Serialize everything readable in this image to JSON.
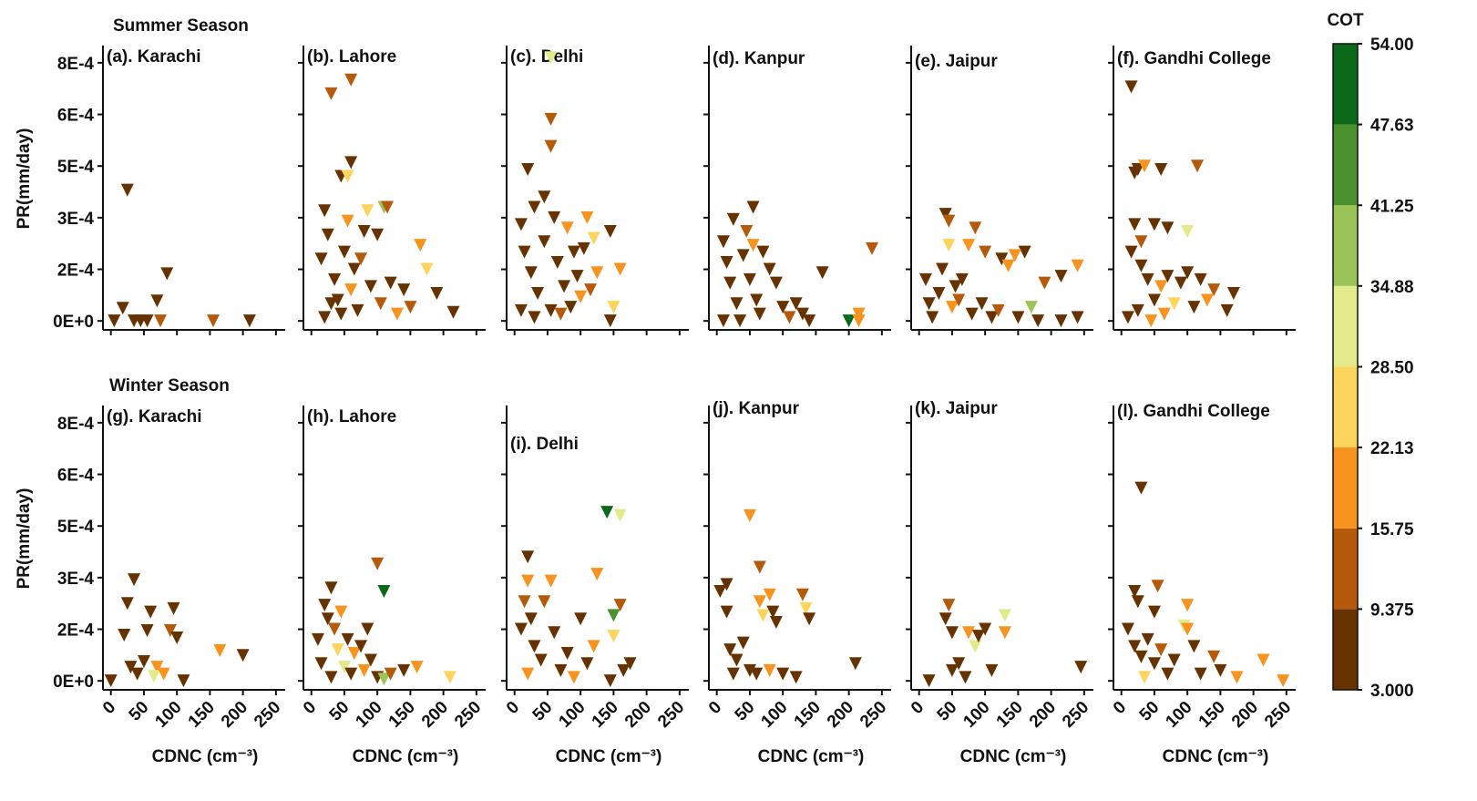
{
  "chart_data": [
    {
      "type": "scatter",
      "season": "Summer Season",
      "title": "(a). Karachi",
      "ylabel": "PR(mm/day)",
      "x": [
        5,
        18,
        25,
        35,
        45,
        55,
        70,
        75,
        85,
        155,
        210
      ],
      "values": [
        0,
        3.7e-05,
        0.00038,
        0,
        0,
        0,
        5.8e-05,
        0,
        0.000137,
        0,
        0
      ],
      "cot": [
        5,
        5,
        5,
        5,
        5,
        5,
        5,
        12,
        5,
        12,
        5
      ],
      "xlim": [
        -12,
        264
      ],
      "ylim": [
        -2.6e-05,
        0.0008
      ],
      "xticks": [
        0,
        50,
        100,
        150,
        200,
        250
      ],
      "yticks": [
        {
          "value": 0,
          "label": "0E+0"
        },
        {
          "value": 0.00015,
          "label": "2E-4"
        },
        {
          "value": 0.0003,
          "label": "3E-4"
        },
        {
          "value": 0.00045,
          "label": "5E-4"
        },
        {
          "value": 0.0006,
          "label": "6E-4"
        },
        {
          "value": 0.00075,
          "label": "8E-4"
        }
      ]
    },
    {
      "type": "scatter",
      "title": "(b). Lahore",
      "x": [
        30,
        60,
        45,
        60,
        55,
        110,
        115,
        165,
        175,
        190,
        215,
        85,
        20,
        25,
        15,
        35,
        40,
        50,
        65,
        70,
        80,
        90,
        100,
        105,
        120,
        130,
        140,
        150,
        20,
        30,
        45,
        60,
        75,
        55
      ],
      "values": [
        0.00066,
        0.0007,
        0.00042,
        0.00046,
        0.00042,
        0.00033,
        0.00033,
        0.00022,
        0.00015,
        8e-05,
        2.5e-05,
        0.00032,
        0.00032,
        0.00025,
        0.00018,
        0.00012,
        6e-05,
        0.0002,
        0.00015,
        3e-05,
        0.00026,
        0.0001,
        0.00025,
        5e-05,
        0.00011,
        2e-05,
        9e-05,
        4e-05,
        1e-05,
        5e-05,
        2e-05,
        9e-05,
        0.00018,
        0.00029
      ],
      "cot": [
        12,
        12,
        5,
        5,
        25,
        37,
        12,
        18,
        28,
        5,
        5,
        25,
        5,
        5,
        5,
        5,
        5,
        5,
        5,
        5,
        5,
        5,
        5,
        12,
        5,
        18,
        5,
        12,
        5,
        5,
        5,
        18,
        12,
        18
      ],
      "xlim": [
        -12,
        264
      ],
      "ylim": [
        -2.6e-05,
        0.0008
      ],
      "xticks": [
        0,
        50,
        100,
        150,
        200,
        250
      ],
      "yticks": [
        0,
        0.00015,
        0.0003,
        0.00045,
        0.0006,
        0.00075
      ]
    },
    {
      "type": "scatter",
      "title": "(c). Delhi",
      "x": [
        55,
        55,
        55,
        20,
        30,
        45,
        60,
        80,
        110,
        120,
        145,
        160,
        150,
        145,
        10,
        15,
        25,
        35,
        45,
        55,
        65,
        75,
        85,
        95,
        105,
        115,
        125,
        10,
        30,
        70,
        90,
        100
      ],
      "values": [
        0.000765,
        0.000586,
        0.000507,
        0.00044,
        0.00033,
        0.00036,
        0.0003,
        0.00027,
        0.0003,
        0.00024,
        0.00026,
        0.00015,
        4e-05,
        0,
        0.00028,
        0.0002,
        0.00014,
        8e-05,
        0.00023,
        3e-05,
        0.00017,
        0.0001,
        4e-05,
        0.00013,
        0.00021,
        9e-05,
        0.00014,
        3e-05,
        1e-05,
        2e-05,
        0.0002,
        7e-05
      ],
      "cot": [
        31,
        12,
        12,
        5,
        5,
        5,
        5,
        18,
        18,
        28,
        5,
        18,
        28,
        5,
        5,
        5,
        5,
        5,
        5,
        5,
        5,
        5,
        5,
        5,
        5,
        12,
        18,
        5,
        5,
        12,
        5,
        18
      ],
      "xlim": [
        -12,
        264
      ],
      "ylim": [
        -2.6e-05,
        0.0008
      ],
      "xticks": [
        0,
        50,
        100,
        150,
        200,
        250
      ],
      "yticks": [
        0,
        0.00015,
        0.0003,
        0.00045,
        0.0006,
        0.00075
      ]
    },
    {
      "type": "scatter",
      "title": "(d). Kanpur",
      "x": [
        25,
        55,
        45,
        10,
        15,
        20,
        30,
        40,
        50,
        60,
        70,
        80,
        90,
        100,
        110,
        130,
        160,
        200,
        215,
        215,
        235,
        35,
        65,
        120,
        10,
        55,
        140
      ],
      "values": [
        0.000295,
        0.00033,
        0.00026,
        0.00023,
        0.00017,
        0.00011,
        5e-05,
        0.00019,
        0.00012,
        6e-05,
        0.0002,
        0.00015,
        0.00011,
        4e-05,
        1e-05,
        2e-05,
        0.00014,
        0,
        2e-05,
        0,
        0.00021,
        0,
        2e-05,
        5e-05,
        0,
        0.00022,
        0
      ],
      "cot": [
        5,
        5,
        12,
        5,
        5,
        5,
        5,
        5,
        5,
        5,
        5,
        5,
        5,
        5,
        12,
        5,
        5,
        50,
        22,
        18,
        12,
        5,
        5,
        5,
        5,
        18,
        5
      ],
      "xlim": [
        -12,
        264
      ],
      "ylim": [
        -2.6e-05,
        0.0008
      ],
      "xticks": [
        0,
        50,
        100,
        150,
        200,
        250
      ],
      "yticks": [
        0,
        0.00015,
        0.0003,
        0.00045,
        0.0006,
        0.00075
      ]
    },
    {
      "type": "scatter",
      "title": "(e). Jaipur",
      "x": [
        40,
        45,
        45,
        55,
        85,
        75,
        100,
        125,
        160,
        145,
        135,
        170,
        190,
        215,
        240,
        240,
        215,
        180,
        10,
        15,
        20,
        30,
        35,
        50,
        60,
        65,
        80,
        95,
        110,
        120,
        150
      ],
      "values": [
        0.00031,
        0.00029,
        0.00022,
        0.0001,
        0.00027,
        0.00022,
        0.0002,
        0.00018,
        0.0002,
        0.00019,
        0.00016,
        4e-05,
        0.00011,
        0.00013,
        0.00016,
        1e-05,
        0,
        0,
        0.00012,
        5e-05,
        1e-05,
        8e-05,
        0.00015,
        4e-05,
        6e-05,
        0.00012,
        2e-05,
        5e-05,
        1e-05,
        3e-05,
        1e-05
      ],
      "cot": [
        5,
        12,
        28,
        5,
        12,
        18,
        12,
        5,
        5,
        18,
        18,
        37,
        12,
        5,
        18,
        5,
        5,
        5,
        5,
        5,
        5,
        5,
        5,
        18,
        12,
        5,
        5,
        5,
        5,
        12,
        5
      ],
      "xlim": [
        -12,
        264
      ],
      "ylim": [
        -2.6e-05,
        0.0008
      ],
      "xticks": [
        0,
        50,
        100,
        150,
        200,
        250
      ],
      "yticks": [
        0,
        0.00015,
        0.0003,
        0.00045,
        0.0006,
        0.00075
      ]
    },
    {
      "type": "scatter",
      "title": "(f). Gandhi College",
      "x": [
        15,
        20,
        25,
        35,
        60,
        115,
        100,
        70,
        50,
        20,
        15,
        30,
        40,
        50,
        60,
        70,
        80,
        90,
        100,
        110,
        120,
        140,
        160,
        170,
        10,
        25,
        45,
        30,
        65,
        130
      ],
      "values": [
        0.00068,
        0.00043,
        0.00044,
        0.00045,
        0.00044,
        0.00045,
        0.00026,
        0.00027,
        0.00028,
        0.00028,
        0.0002,
        0.00016,
        0.00012,
        6e-05,
        0.0001,
        0.00013,
        5e-05,
        0.00011,
        0.00014,
        4e-05,
        0.00012,
        9e-05,
        3e-05,
        8e-05,
        1e-05,
        3e-05,
        0,
        0.00023,
        2e-05,
        6e-05
      ],
      "cot": [
        5,
        5,
        5,
        22,
        5,
        12,
        31,
        5,
        5,
        5,
        5,
        5,
        5,
        5,
        22,
        5,
        28,
        5,
        5,
        5,
        5,
        12,
        5,
        5,
        5,
        5,
        18,
        12,
        18,
        18
      ],
      "xlim": [
        -12,
        264
      ],
      "ylim": [
        -2.6e-05,
        0.0008
      ],
      "xticks": [
        0,
        50,
        100,
        150,
        200,
        250
      ],
      "yticks": [
        0,
        0.00015,
        0.0003,
        0.00045,
        0.0006,
        0.00075
      ]
    },
    {
      "type": "scatter",
      "season": "Winter Season",
      "title": "(g). Karachi",
      "ylabel": "PR(mm/day)",
      "xlabel": "CDNC (cm⁻³)",
      "x": [
        0,
        35,
        25,
        60,
        95,
        90,
        100,
        55,
        20,
        165,
        200,
        30,
        40,
        50,
        70,
        65,
        80,
        110
      ],
      "values": [
        0,
        0.000294,
        0.000225,
        0.0002,
        0.00021,
        0.000146,
        0.000125,
        0.000146,
        0.000133,
        8.8e-05,
        7.4e-05,
        4e-05,
        2e-05,
        5.6e-05,
        4e-05,
        1.3e-05,
        2e-05,
        0
      ],
      "cot": [
        5,
        5,
        5,
        5,
        5,
        12,
        5,
        5,
        5,
        18,
        5,
        5,
        5,
        5,
        18,
        31,
        18,
        5
      ],
      "xlim": [
        -12,
        264
      ],
      "ylim": [
        -2.6e-05,
        0.0008
      ],
      "xticks": [
        0,
        50,
        100,
        150,
        200,
        250
      ],
      "yticks": [
        {
          "value": 0,
          "label": "0E+0"
        },
        {
          "value": 0.00015,
          "label": "2E-4"
        },
        {
          "value": 0.0003,
          "label": "3E-4"
        },
        {
          "value": 0.00045,
          "label": "5E-4"
        },
        {
          "value": 0.0006,
          "label": "6E-4"
        },
        {
          "value": 0.00075,
          "label": "8E-4"
        }
      ]
    },
    {
      "type": "scatter",
      "title": "(h). Lahore",
      "xlabel": "CDNC (cm⁻³)",
      "x": [
        100,
        110,
        30,
        20,
        25,
        35,
        45,
        55,
        65,
        75,
        40,
        50,
        15,
        30,
        60,
        80,
        90,
        100,
        110,
        120,
        140,
        160,
        210,
        10,
        85
      ],
      "values": [
        0.00034,
        0.00026,
        0.00027,
        0.00022,
        0.00018,
        0.00015,
        0.0002,
        0.00012,
        8e-05,
        0.0001,
        9e-05,
        4e-05,
        5e-05,
        1e-05,
        2e-05,
        3e-05,
        6e-05,
        1e-05,
        5e-06,
        2e-05,
        3e-05,
        4e-05,
        1e-05,
        0.00012,
        0.00015
      ],
      "cot": [
        12,
        50,
        5,
        5,
        5,
        12,
        18,
        5,
        18,
        5,
        25,
        31,
        5,
        5,
        5,
        18,
        5,
        5,
        37,
        12,
        5,
        18,
        28,
        5,
        5
      ],
      "xlim": [
        -12,
        264
      ],
      "ylim": [
        -2.6e-05,
        0.0008
      ],
      "xticks": [
        0,
        50,
        100,
        150,
        200,
        250
      ],
      "yticks": [
        0,
        0.00015,
        0.0003,
        0.00045,
        0.0006,
        0.00075
      ]
    },
    {
      "type": "scatter",
      "title": "(i). Delhi",
      "xlabel": "CDNC (cm⁻³)",
      "x": [
        20,
        20,
        55,
        140,
        160,
        125,
        150,
        160,
        15,
        25,
        45,
        10,
        30,
        40,
        60,
        70,
        80,
        100,
        110,
        150,
        145,
        165,
        175,
        120,
        90,
        20
      ],
      "values": [
        0.00036,
        0.00029,
        0.00029,
        0.00049,
        0.00048,
        0.00031,
        0.00019,
        0.00022,
        0.00023,
        0.00018,
        0.00023,
        0.00015,
        0.0001,
        6e-05,
        0.00014,
        3e-05,
        8e-05,
        0.00018,
        5e-05,
        0.00013,
        0,
        3e-05,
        5e-05,
        0.0001,
        1e-05,
        2e-05
      ],
      "cot": [
        5,
        18,
        18,
        50,
        31,
        18,
        43,
        12,
        12,
        5,
        12,
        5,
        5,
        5,
        5,
        5,
        5,
        5,
        5,
        28,
        5,
        5,
        5,
        18,
        18,
        18
      ],
      "xlim": [
        -12,
        264
      ],
      "ylim": [
        -2.6e-05,
        0.0008
      ],
      "xticks": [
        0,
        50,
        100,
        150,
        200,
        250
      ],
      "yticks": [
        0,
        0.00015,
        0.0003,
        0.00045,
        0.0006,
        0.00075
      ]
    },
    {
      "type": "scatter",
      "title": "(j). Kanpur",
      "xlabel": "CDNC (cm⁻³)",
      "x": [
        50,
        65,
        5,
        15,
        15,
        65,
        80,
        70,
        90,
        85,
        130,
        135,
        140,
        20,
        30,
        40,
        50,
        60,
        80,
        100,
        120,
        210,
        25
      ],
      "values": [
        0.00048,
        0.00033,
        0.00026,
        0.00028,
        0.0002,
        0.00023,
        0.00025,
        0.00019,
        0.00017,
        0.0002,
        0.00025,
        0.00021,
        0.00018,
        9e-05,
        6e-05,
        0.00011,
        3e-05,
        2e-05,
        3e-05,
        2e-05,
        1e-05,
        5e-05,
        2e-05
      ],
      "cot": [
        18,
        12,
        5,
        5,
        5,
        22,
        22,
        28,
        5,
        5,
        12,
        28,
        5,
        5,
        5,
        5,
        5,
        5,
        18,
        5,
        5,
        5,
        5
      ],
      "xlim": [
        -12,
        264
      ],
      "ylim": [
        -2.6e-05,
        0.0008
      ],
      "xticks": [
        0,
        50,
        100,
        150,
        200,
        250
      ],
      "yticks": [
        0,
        0.00015,
        0.0003,
        0.00045,
        0.0006,
        0.00075
      ]
    },
    {
      "type": "scatter",
      "title": "(k). Jaipur",
      "xlabel": "CDNC (cm⁻³)",
      "x": [
        45,
        40,
        50,
        75,
        100,
        130,
        130,
        85,
        90,
        15,
        50,
        60,
        70,
        110,
        245
      ],
      "values": [
        0.00022,
        0.00018,
        0.00014,
        0.00014,
        0.00015,
        0.00019,
        0.00014,
        0.0001,
        0.00013,
        0,
        3e-05,
        5e-05,
        1e-05,
        3e-05,
        4e-05
      ],
      "cot": [
        12,
        5,
        5,
        18,
        5,
        31,
        18,
        31,
        5,
        5,
        5,
        5,
        5,
        5,
        5
      ],
      "xlim": [
        -12,
        264
      ],
      "ylim": [
        -2.6e-05,
        0.0008
      ],
      "xticks": [
        0,
        50,
        100,
        150,
        200,
        250
      ],
      "yticks": [
        0,
        0.00015,
        0.0003,
        0.00045,
        0.0006,
        0.00075
      ]
    },
    {
      "type": "scatter",
      "title": "(l). Gandhi College",
      "xlabel": "CDNC (cm⁻³)",
      "x": [
        30,
        20,
        55,
        25,
        50,
        100,
        95,
        100,
        10,
        20,
        30,
        40,
        50,
        60,
        70,
        80,
        110,
        120,
        140,
        150,
        175,
        215,
        245,
        35
      ],
      "values": [
        0.00056,
        0.00026,
        0.000275,
        0.00023,
        0.0002,
        0.00022,
        0.00016,
        0.00015,
        0.00015,
        0.0001,
        7e-05,
        0.00012,
        5e-05,
        9e-05,
        2e-05,
        6e-05,
        0.0001,
        2e-05,
        7e-05,
        3e-05,
        1e-05,
        6e-05,
        0,
        1e-05
      ],
      "cot": [
        5,
        5,
        12,
        5,
        5,
        18,
        31,
        18,
        5,
        5,
        5,
        5,
        5,
        12,
        5,
        5,
        5,
        5,
        12,
        5,
        18,
        18,
        18,
        28
      ],
      "xlim": [
        -12,
        264
      ],
      "ylim": [
        -2.6e-05,
        0.0008
      ],
      "xticks": [
        0,
        50,
        100,
        150,
        200,
        250
      ],
      "yticks": [
        0,
        0.00015,
        0.0003,
        0.00045,
        0.0006,
        0.00075
      ]
    }
  ],
  "colorbar": {
    "title": "COT",
    "ticks": [
      {
        "value": 3,
        "label": "3.000"
      },
      9.375,
      15.75,
      22.13,
      {
        "value": 28.5,
        "label": "28.50"
      },
      34.88,
      41.25,
      47.63,
      {
        "value": 54,
        "label": "54.00"
      }
    ],
    "colors": [
      "#663300",
      "#b55a0b",
      "#f7931e",
      "#fdd45c",
      "#e3ea8c",
      "#9bc458",
      "#4b912e",
      "#0b6a1a"
    ]
  }
}
